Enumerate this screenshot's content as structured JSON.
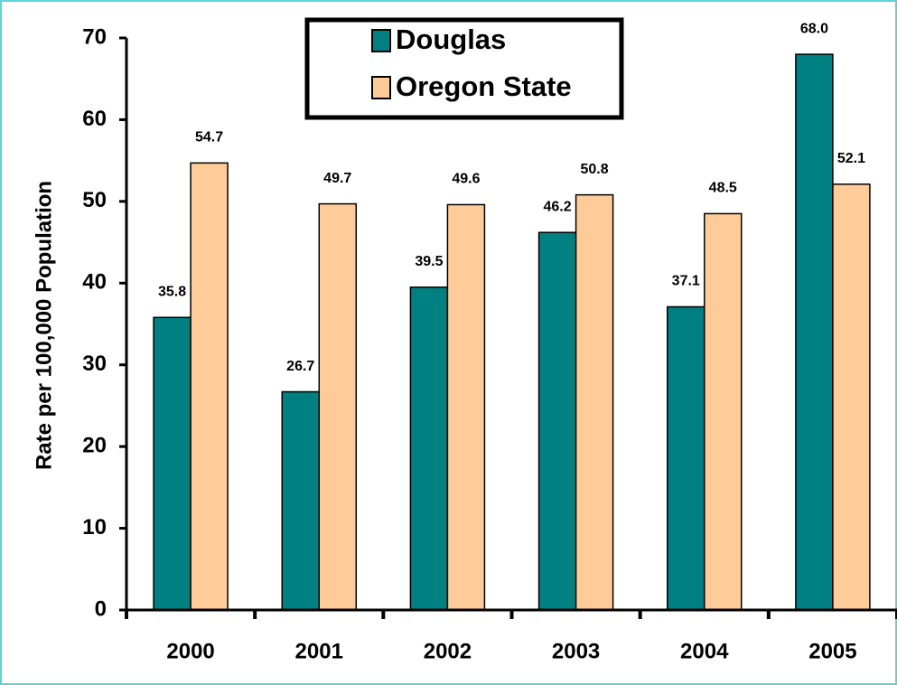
{
  "chart_data": {
    "type": "bar",
    "y_label": "Rate per 100,000 Population",
    "categories": [
      "2000",
      "2001",
      "2002",
      "2003",
      "2004",
      "2005"
    ],
    "series": [
      {
        "name": "Douglas",
        "color": "#008080",
        "values": [
          35.8,
          26.7,
          39.5,
          46.2,
          37.1,
          68.0
        ],
        "value_labels": [
          "35.8",
          "26.7",
          "39.5",
          "46.2",
          "37.1",
          "68.0"
        ]
      },
      {
        "name": "Oregon State",
        "color": "#ffcc99",
        "values": [
          54.7,
          49.7,
          49.6,
          50.8,
          48.5,
          52.1
        ],
        "value_labels": [
          "54.7",
          "49.7",
          "49.6",
          "50.8",
          "48.5",
          "52.1"
        ]
      }
    ],
    "ylim": [
      0,
      70
    ],
    "yticks": [
      0,
      10,
      20,
      30,
      40,
      50,
      60,
      70
    ],
    "grid": false,
    "legend": "top"
  }
}
